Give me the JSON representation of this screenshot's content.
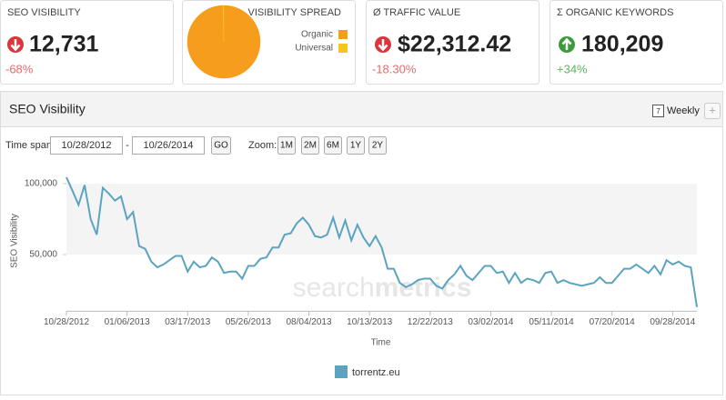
{
  "cards": [
    {
      "title": "SEO VISIBILITY",
      "value": "12,731",
      "change": "-68%"
    },
    {
      "title": "Ø TRAFFIC VALUE",
      "value": "$22,312.42",
      "change": "-18.30%"
    },
    {
      "title": "Σ ORGANIC KEYWORDS",
      "value": "180,209",
      "change": "+34%"
    }
  ],
  "panel": {
    "title": "SEO Visibility",
    "interval_icon": "7",
    "interval": "Weekly",
    "add": "+",
    "time_span_label": "Time span:",
    "date_from": "10/28/2012",
    "date_separator": "-",
    "date_to": "10/26/2014",
    "go": "GO",
    "zoom_label": "Zoom:",
    "zoom_options": [
      "1M",
      "2M",
      "6M",
      "1Y",
      "2Y"
    ],
    "watermark": [
      "search",
      "metrics"
    ]
  },
  "chart_data": [
    {
      "type": "pie",
      "title": "VISIBILITY SPREAD",
      "categories": [
        "Organic",
        "Universal"
      ],
      "values": [
        99.6,
        0.4
      ],
      "colors": [
        "#f79d1e",
        "#f5c61c"
      ]
    },
    {
      "type": "line",
      "y_label": "SEO Visibility",
      "x_label": "Time",
      "x": [
        "10/28/2012",
        "11/04/2012",
        "11/11/2012",
        "11/18/2012",
        "11/25/2012",
        "12/02/2012",
        "12/09/2012",
        "12/16/2012",
        "12/23/2012",
        "12/30/2012",
        "01/06/2013",
        "01/13/2013",
        "01/20/2013",
        "01/27/2013",
        "02/03/2013",
        "02/10/2013",
        "02/17/2013",
        "02/24/2013",
        "03/03/2013",
        "03/10/2013",
        "03/17/2013",
        "03/24/2013",
        "03/31/2013",
        "04/07/2013",
        "04/14/2013",
        "04/21/2013",
        "04/28/2013",
        "05/05/2013",
        "05/12/2013",
        "05/19/2013",
        "05/26/2013",
        "06/02/2013",
        "06/09/2013",
        "06/16/2013",
        "06/23/2013",
        "06/30/2013",
        "07/07/2013",
        "07/14/2013",
        "07/21/2013",
        "07/28/2013",
        "08/04/2013",
        "08/11/2013",
        "08/18/2013",
        "08/25/2013",
        "09/01/2013",
        "09/08/2013",
        "09/15/2013",
        "09/22/2013",
        "09/29/2013",
        "10/06/2013",
        "10/13/2013",
        "10/20/2013",
        "10/27/2013",
        "11/03/2013",
        "11/10/2013",
        "11/17/2013",
        "11/24/2013",
        "12/01/2013",
        "12/08/2013",
        "12/15/2013",
        "12/22/2013",
        "12/29/2013",
        "01/05/2014",
        "01/12/2014",
        "01/19/2014",
        "01/26/2014",
        "02/02/2014",
        "02/09/2014",
        "02/16/2014",
        "02/23/2014",
        "03/02/2014",
        "03/09/2014",
        "03/16/2014",
        "03/23/2014",
        "03/30/2014",
        "04/06/2014",
        "04/13/2014",
        "04/20/2014",
        "04/27/2014",
        "05/04/2014",
        "05/11/2014",
        "05/18/2014",
        "05/25/2014",
        "06/01/2014",
        "06/08/2014",
        "06/15/2014",
        "06/22/2014",
        "06/29/2014",
        "07/06/2014",
        "07/13/2014",
        "07/20/2014",
        "07/27/2014",
        "08/03/2014",
        "08/10/2014",
        "08/17/2014",
        "08/24/2014",
        "08/31/2014",
        "09/07/2014",
        "09/14/2014",
        "09/21/2014",
        "09/28/2014",
        "10/05/2014",
        "10/12/2014",
        "10/19/2014",
        "10/26/2014"
      ],
      "series": [
        {
          "name": "torrentz.eu",
          "color": "#5ba4bf",
          "values": [
            104500,
            95000,
            85000,
            99000,
            75000,
            64000,
            97000,
            93000,
            88000,
            91000,
            75000,
            80000,
            56000,
            54000,
            45000,
            41000,
            43000,
            46000,
            49000,
            49000,
            38000,
            45000,
            41000,
            42000,
            48000,
            45000,
            37000,
            38000,
            38000,
            33000,
            42000,
            42000,
            47000,
            48000,
            55000,
            55000,
            64000,
            65000,
            72000,
            76000,
            71000,
            63000,
            62000,
            64000,
            76000,
            62000,
            74000,
            60000,
            71000,
            62000,
            56000,
            63000,
            55000,
            40000,
            40000,
            30000,
            27000,
            29000,
            32000,
            33000,
            33000,
            28000,
            26000,
            32000,
            36000,
            42000,
            35000,
            32000,
            37000,
            42000,
            42000,
            37000,
            38000,
            30000,
            37000,
            30000,
            33000,
            32000,
            30000,
            37000,
            38000,
            30000,
            32000,
            30000,
            29000,
            28000,
            29000,
            30000,
            34000,
            30000,
            30000,
            35000,
            40000,
            40000,
            43000,
            40000,
            37000,
            42000,
            36000,
            46000,
            43000,
            45000,
            42000,
            41000,
            13000
          ]
        }
      ],
      "ylim": [
        10000,
        110000
      ],
      "yticks": [
        {
          "value": 50000,
          "label": "50,000"
        },
        {
          "value": 100000,
          "label": "100,000"
        }
      ],
      "xticks": [
        "10/28/2012",
        "01/06/2013",
        "03/17/2013",
        "05/26/2013",
        "08/04/2013",
        "10/13/2013",
        "12/22/2013",
        "03/02/2014",
        "05/11/2014",
        "07/20/2014",
        "09/28/2014"
      ],
      "bands": true
    }
  ]
}
